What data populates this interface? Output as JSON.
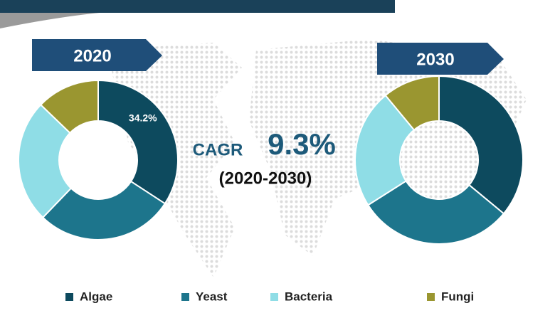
{
  "chart_data": {
    "type": "donut",
    "categories": [
      "Algae",
      "Yeast",
      "Bacteria",
      "Fungi"
    ],
    "colors": [
      "#0d4a5e",
      "#1d758c",
      "#8fdde6",
      "#9a9630"
    ],
    "legend_position": "bottom",
    "panels": [
      {
        "title": "2020",
        "values": [
          34.2,
          28,
          25,
          12.8
        ],
        "value_labels": [
          "34.2%",
          null,
          null,
          null
        ]
      },
      {
        "title": "2030",
        "values": [
          36,
          30,
          23,
          11
        ]
      }
    ],
    "annotations": {
      "cagr_label": "CAGR",
      "cagr_value": "9.3%",
      "cagr_period": "(2020-2030)"
    }
  }
}
